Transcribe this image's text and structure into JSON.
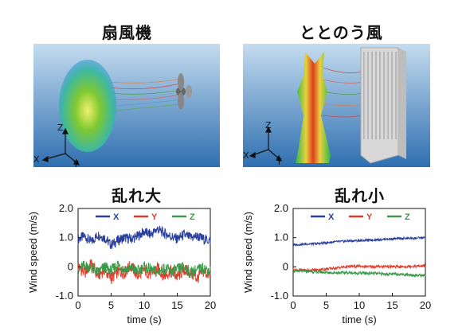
{
  "panels": [
    {
      "title": "扇風機",
      "axes": {
        "x": "X",
        "y": "Y",
        "z": "Z"
      }
    },
    {
      "title": "ととのう風",
      "axes": {
        "x": "X",
        "y": "Y",
        "z": "Z"
      }
    }
  ],
  "chart_data": [
    {
      "type": "line",
      "title": "乱れ大",
      "xlabel": "time (s)",
      "ylabel": "Wind speed (m/s)",
      "xlim": [
        0,
        20
      ],
      "ylim": [
        -1.0,
        2.0
      ],
      "xticks": [
        "0",
        "5",
        "10",
        "15",
        "20"
      ],
      "yticks": [
        "-1.0",
        "0",
        "1.0",
        "2.0"
      ],
      "legend": "top",
      "series": [
        {
          "name": "X",
          "color": "#2a3f9c",
          "x": [
            0,
            1,
            2,
            3,
            4,
            5,
            6,
            7,
            8,
            9,
            10,
            11,
            12,
            13,
            14,
            15,
            16,
            17,
            18,
            19,
            20
          ],
          "values": [
            0.95,
            1.05,
            0.85,
            1.1,
            1.0,
            0.75,
            0.9,
            1.0,
            0.95,
            1.05,
            1.2,
            1.1,
            1.3,
            1.15,
            1.05,
            0.95,
            1.1,
            1.0,
            1.05,
            0.95,
            0.9
          ]
        },
        {
          "name": "Y",
          "color": "#e33a2a",
          "x": [
            0,
            1,
            2,
            3,
            4,
            5,
            6,
            7,
            8,
            9,
            10,
            11,
            12,
            13,
            14,
            15,
            16,
            17,
            18,
            19,
            20
          ],
          "values": [
            0.0,
            -0.2,
            0.1,
            -0.3,
            -0.1,
            -0.4,
            -0.15,
            -0.2,
            0.05,
            -0.3,
            -0.1,
            -0.25,
            -0.05,
            -0.3,
            -0.15,
            -0.35,
            -0.1,
            -0.2,
            -0.4,
            -0.15,
            -0.3
          ]
        },
        {
          "name": "Z",
          "color": "#3a9a4a",
          "x": [
            0,
            1,
            2,
            3,
            4,
            5,
            6,
            7,
            8,
            9,
            10,
            11,
            12,
            13,
            14,
            15,
            16,
            17,
            18,
            19,
            20
          ],
          "values": [
            -0.1,
            0.05,
            -0.05,
            -0.2,
            0.0,
            -0.15,
            0.1,
            -0.1,
            -0.05,
            -0.15,
            0.0,
            -0.1,
            -0.2,
            -0.05,
            -0.15,
            -0.1,
            0.0,
            -0.2,
            -0.1,
            -0.05,
            -0.15
          ]
        }
      ]
    },
    {
      "type": "line",
      "title": "乱れ小",
      "xlabel": "time (s)",
      "ylabel": "Wind speed (m/s)",
      "xlim": [
        0,
        20
      ],
      "ylim": [
        -1.0,
        2.0
      ],
      "xticks": [
        "0",
        "5",
        "10",
        "15",
        "20"
      ],
      "yticks": [
        "-1.0",
        "0",
        "1.0",
        "2.0"
      ],
      "legend": "top",
      "series": [
        {
          "name": "X",
          "color": "#2a3f9c",
          "x": [
            0,
            2,
            4,
            6,
            8,
            10,
            12,
            14,
            16,
            18,
            20
          ],
          "values": [
            0.75,
            0.78,
            0.8,
            0.85,
            0.88,
            0.9,
            0.92,
            0.95,
            0.97,
            0.98,
            1.0
          ]
        },
        {
          "name": "Y",
          "color": "#e33a2a",
          "x": [
            0,
            2,
            4,
            6,
            8,
            10,
            12,
            14,
            16,
            18,
            20
          ],
          "values": [
            -0.1,
            -0.12,
            -0.1,
            -0.05,
            0.0,
            0.02,
            0.0,
            0.02,
            0.0,
            0.02,
            0.03
          ]
        },
        {
          "name": "Z",
          "color": "#3a9a4a",
          "x": [
            0,
            2,
            4,
            6,
            8,
            10,
            12,
            14,
            16,
            18,
            20
          ],
          "values": [
            -0.15,
            -0.15,
            -0.18,
            -0.2,
            -0.2,
            -0.22,
            -0.22,
            -0.25,
            -0.25,
            -0.28,
            -0.3
          ]
        }
      ]
    }
  ]
}
